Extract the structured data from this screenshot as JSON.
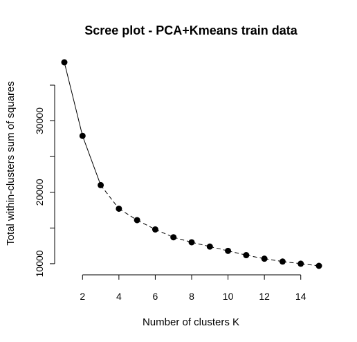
{
  "chart_data": {
    "type": "line",
    "title": "Scree plot - PCA+Kmeans train data",
    "xlabel": "Number of clusters K",
    "ylabel": "Total within-clusters sum of squares",
    "x": [
      1,
      2,
      3,
      4,
      5,
      6,
      7,
      8,
      9,
      10,
      11,
      12,
      13,
      14,
      15
    ],
    "series": [
      {
        "values": [
          38200,
          27900,
          21000,
          17700,
          16100,
          14800,
          13700,
          13000,
          12400,
          11800,
          11200,
          10700,
          10300,
          10000,
          9700
        ]
      }
    ],
    "xticks": [
      2,
      4,
      6,
      8,
      10,
      12,
      14
    ],
    "xtick_labels": [
      "2",
      "4",
      "6",
      "8",
      "10",
      "12",
      "14"
    ],
    "yticks": [
      10000,
      20000,
      30000
    ],
    "ytick_labels": [
      "10000",
      "20000",
      "30000"
    ],
    "xlim": [
      1,
      15
    ],
    "ylim": [
      9700,
      38200
    ],
    "grid": false,
    "line_style": "solid then dashed after K=3",
    "marker": "filled-circle",
    "color": "#000000"
  }
}
